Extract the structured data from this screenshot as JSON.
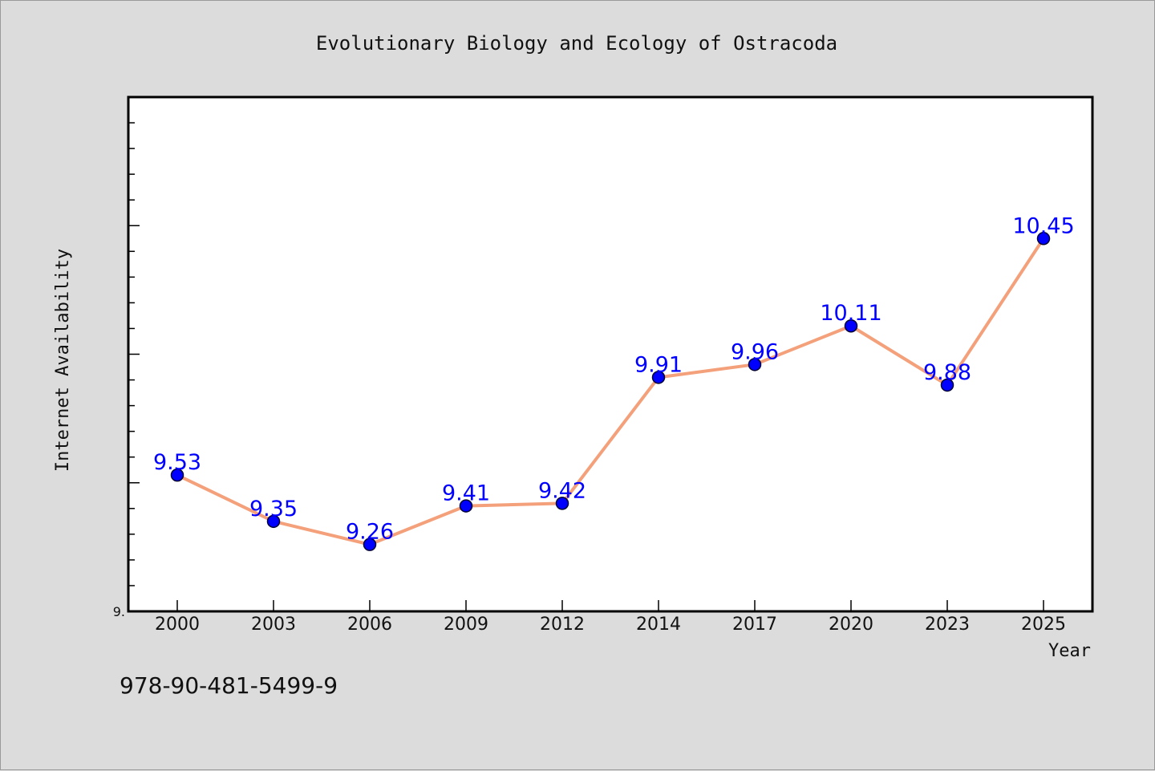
{
  "chart_data": {
    "type": "line",
    "title": "Evolutionary Biology and Ecology of Ostracoda",
    "xlabel": "Year",
    "ylabel": "Internet Availability",
    "categories": [
      "2000",
      "2003",
      "2006",
      "2009",
      "2012",
      "2014",
      "2017",
      "2020",
      "2023",
      "2025"
    ],
    "series": [
      {
        "values": [
          9.53,
          9.35,
          9.26,
          9.41,
          9.42,
          9.91,
          9.96,
          10.11,
          9.88,
          10.45
        ],
        "data_labels": [
          "9.53",
          "9.35",
          "9.26",
          "9.41",
          "9.42",
          "9.91",
          "9.96",
          "10.11",
          "9.88",
          "10.45"
        ]
      }
    ],
    "ylim": [
      9.0,
      11.0
    ],
    "y_tick_labels": [
      {
        "value": 9.0,
        "label": "9."
      }
    ],
    "y_major_step": 0.5,
    "y_minor_step": 0.1,
    "grid": false,
    "legend": "none",
    "colors": {
      "line": "#f4a07a",
      "marker": "#0000ff",
      "marker_edge": "#000033",
      "data_label": "#0000ff",
      "plot_bg": "#ffffff",
      "page_bg": "#dcdcdc"
    }
  },
  "footer": {
    "isbn": "978-90-481-5499-9"
  }
}
